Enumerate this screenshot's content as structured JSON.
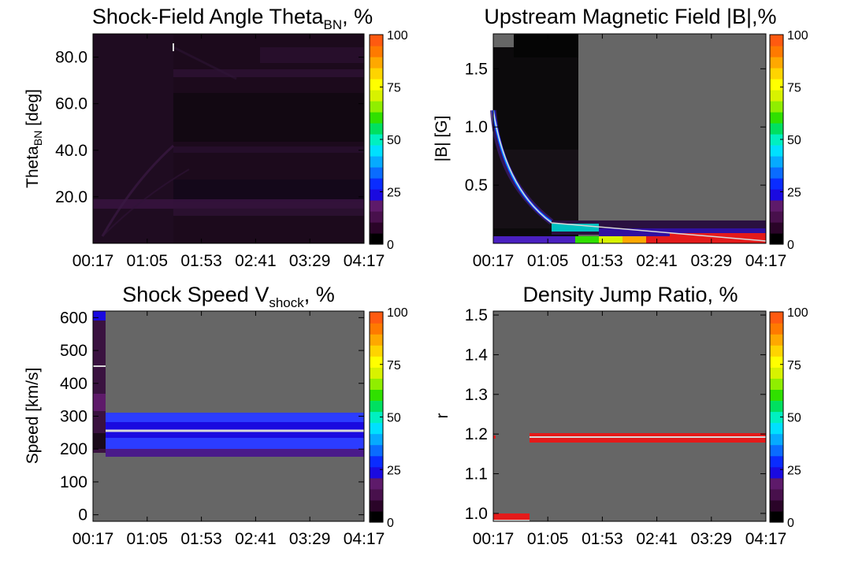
{
  "colorbar": {
    "levels": [
      0,
      25,
      50,
      75,
      100
    ],
    "tick_labels": [
      "0",
      "25",
      "50",
      "75",
      "100"
    ],
    "colors": [
      "#000000",
      "#2a0428",
      "#48104c",
      "#5e1a6a",
      "#1a0ae0",
      "#0a2cff",
      "#0a6cff",
      "#06aaff",
      "#00e0ff",
      "#00f0c0",
      "#00e060",
      "#30e000",
      "#90ee00",
      "#d8f200",
      "#ffff00",
      "#ffd400",
      "#ffa800",
      "#ff7a00",
      "#ff5a10"
    ]
  },
  "colors": {
    "no_data": "#666666",
    "distribution_dark": "#1a0a1a",
    "distribution_purple": "#3a1240",
    "median_line": "#d8d8d8",
    "red_band": "#e41a1a"
  },
  "chart_data": [
    {
      "id": "theta",
      "type": "heatmap",
      "title_main": "Shock-Field Angle Theta",
      "title_sub": "BN",
      "title_tail": ", %",
      "ylabel_main": "Theta",
      "ylabel_sub": "BN",
      "ylabel_tail": " [deg]",
      "x_tick_labels": [
        "00:17",
        "01:05",
        "01:53",
        "02:41",
        "03:29",
        "04:17"
      ],
      "x_range_minutes": [
        17,
        257
      ],
      "y_range": [
        0,
        90
      ],
      "y_ticks": [
        20,
        40,
        60,
        80
      ],
      "y_tick_labels": [
        "20.0",
        "40.0",
        "60.0",
        "80.0"
      ]
    },
    {
      "id": "bfield",
      "type": "heatmap",
      "title": "Upstream Magnetic Field |B|,%",
      "ylabel": "|B| [G]",
      "x_tick_labels": [
        "00:17",
        "01:05",
        "01:53",
        "02:41",
        "03:29",
        "04:17"
      ],
      "x_range_minutes": [
        17,
        257
      ],
      "y_range": [
        0,
        1.8
      ],
      "y_ticks": [
        0.5,
        1.0,
        1.5
      ],
      "y_tick_labels": [
        "0.5",
        "1.0",
        "1.5"
      ]
    },
    {
      "id": "speed",
      "type": "heatmap",
      "title_main": "Shock Speed V",
      "title_sub": "shock",
      "title_tail": ", %",
      "ylabel": "Speed [km/s]",
      "x_tick_labels": [
        "00:17",
        "01:05",
        "01:53",
        "02:41",
        "03:29",
        "04:17"
      ],
      "x_range_minutes": [
        17,
        257
      ],
      "y_range": [
        -20,
        620
      ],
      "y_ticks": [
        0,
        100,
        200,
        300,
        400,
        500,
        600
      ],
      "y_tick_labels": [
        "0",
        "100",
        "200",
        "300",
        "400",
        "500",
        "600"
      ]
    },
    {
      "id": "density",
      "type": "heatmap",
      "title": "Density Jump Ratio, %",
      "ylabel": "r",
      "x_tick_labels": [
        "00:17",
        "01:05",
        "01:53",
        "02:41",
        "03:29",
        "04:17"
      ],
      "x_range_minutes": [
        17,
        257
      ],
      "y_range": [
        0.98,
        1.51
      ],
      "y_ticks": [
        1.0,
        1.1,
        1.2,
        1.3,
        1.4,
        1.5
      ],
      "y_tick_labels": [
        "1.0",
        "1.1",
        "1.2",
        "1.3",
        "1.4",
        "1.5"
      ]
    }
  ]
}
